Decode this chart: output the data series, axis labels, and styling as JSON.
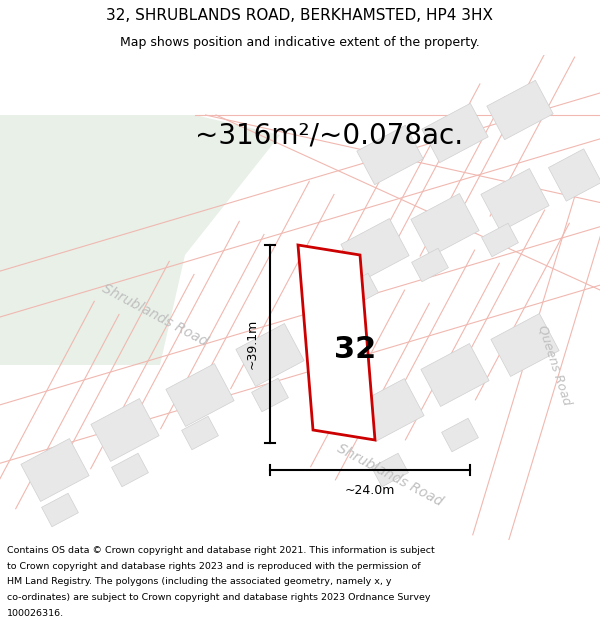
{
  "title": "32, SHRUBLANDS ROAD, BERKHAMSTED, HP4 3HX",
  "subtitle": "Map shows position and indicative extent of the property.",
  "area_label": "~316m²/~0.078ac.",
  "number_label": "32",
  "dim_width": "~24.0m",
  "dim_height": "~39.1m",
  "road_label_1": "Shrublands Road",
  "road_label_2": "Shrublands Road",
  "road_label_3": "Queens Road",
  "footer_lines": [
    "Contains OS data © Crown copyright and database right 2021. This information is subject",
    "to Crown copyright and database rights 2023 and is reproduced with the permission of",
    "HM Land Registry. The polygons (including the associated geometry, namely x, y",
    "co-ordinates) are subject to Crown copyright and database rights 2023 Ordnance Survey",
    "100026316."
  ],
  "map_bg": "#ffffff",
  "road_line_color": "#f0b8b0",
  "building_color": "#e8e8e8",
  "building_edge": "#d0d0d0",
  "green_color": "#e8f0e8",
  "plot_fill": "#ffffff",
  "plot_outline": "#cc0000",
  "dim_color": "#000000",
  "road_text_color": "#c0c0c0",
  "title_color": "#000000",
  "footer_color": "#000000",
  "title_fontsize": 11,
  "subtitle_fontsize": 9,
  "area_fontsize": 20,
  "number_fontsize": 22,
  "dim_fontsize": 9,
  "road_fontsize": 10,
  "footer_fontsize": 6.8
}
